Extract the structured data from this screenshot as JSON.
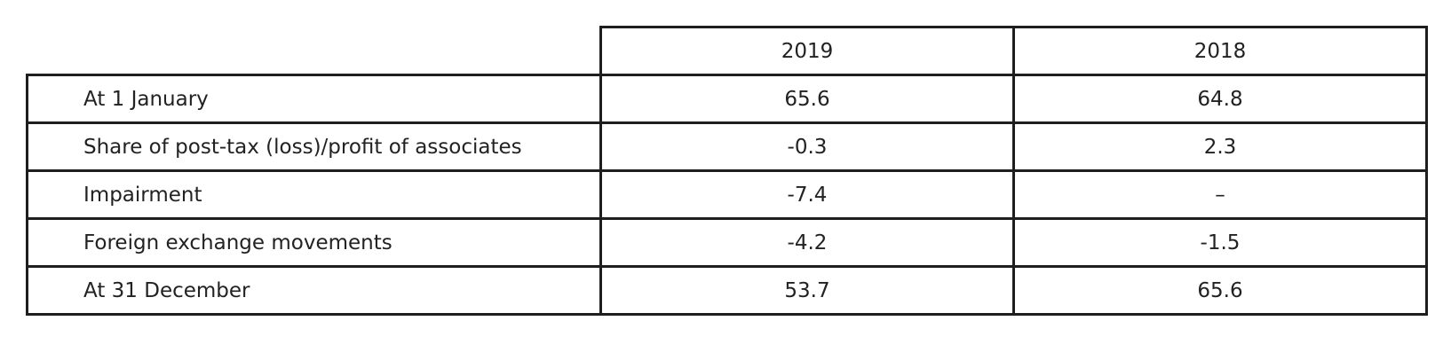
{
  "table": {
    "columns": [
      "",
      "2019",
      "2018"
    ],
    "rows": [
      {
        "label": "At 1 January",
        "y2019": "65.6",
        "y2018": "64.8"
      },
      {
        "label": "Share of post-tax (loss)/profit of associates",
        "y2019": "-0.3",
        "y2018": "2.3"
      },
      {
        "label": "Impairment",
        "y2019": "-7.4",
        "y2018": "–"
      },
      {
        "label": "Foreign exchange movements",
        "y2019": "-4.2",
        "y2018": "-1.5"
      },
      {
        "label": "At 31 December",
        "y2019": "53.7",
        "y2018": "65.6"
      }
    ]
  }
}
